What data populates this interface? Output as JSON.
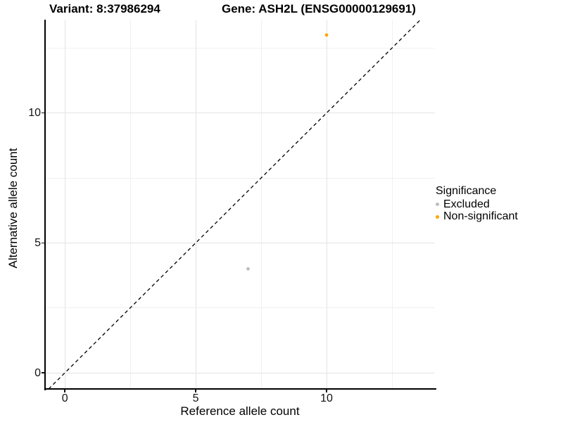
{
  "legend": {
    "title": "Significance",
    "items": [
      {
        "label": "Excluded",
        "color": "#BEBEBE"
      },
      {
        "label": "Non-significant",
        "color": "#FFA500"
      }
    ]
  },
  "chart_data": {
    "type": "scatter",
    "title_left": "Variant: 8:37986294",
    "title_right": "Gene: ASH2L (ENSG00000129691)",
    "xlabel": "Reference allele count",
    "ylabel": "Alternative allele count",
    "xlim": [
      -0.73,
      14.14
    ],
    "ylim": [
      -0.62,
      13.59
    ],
    "x_ticks": [
      0,
      5,
      10
    ],
    "y_ticks": [
      0,
      5,
      10
    ],
    "x_minor_ticks": [
      2.5,
      7.5,
      12.5
    ],
    "y_minor_ticks": [
      2.5,
      7.5,
      12.5
    ],
    "grid": "major+minor",
    "legend_position": "right",
    "series": [
      {
        "name": "Excluded",
        "color": "#BEBEBE",
        "points": [
          [
            7,
            4
          ]
        ]
      },
      {
        "name": "Non-significant",
        "color": "#FFA500",
        "points": [
          [
            10,
            13
          ]
        ]
      }
    ],
    "reference_line": {
      "type": "y=x identity",
      "style": "dashed",
      "color": "#000000"
    }
  }
}
